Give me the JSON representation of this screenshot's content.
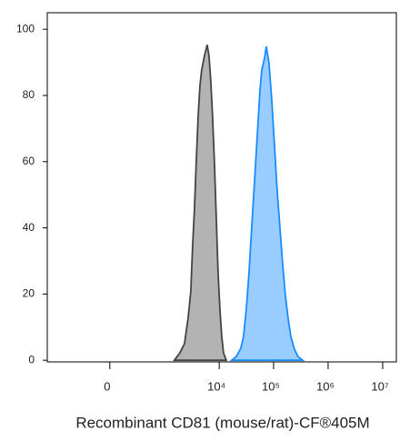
{
  "chart_data": {
    "type": "area",
    "x_label": "Recombinant CD81 (mouse/rat)-CF®405M",
    "xscale": "biexponential",
    "xlim": [
      -1300,
      17800000
    ],
    "xticks": [
      0,
      {
        "value": 10000,
        "label": "10⁴"
      },
      {
        "value": 100000,
        "label": "10⁵"
      },
      {
        "value": 1000000,
        "label": "10⁶"
      },
      {
        "value": 10000000,
        "label": "10⁷"
      }
    ],
    "ylim": [
      -0.5,
      105
    ],
    "yticks": [
      0,
      20,
      40,
      60,
      80,
      100
    ],
    "series": [
      {
        "color": "#b3b3b3",
        "edge_color": "#444444",
        "x": [
          1424,
          1819,
          2227,
          2613,
          2943,
          3186,
          3448,
          3730,
          4038,
          4367,
          4720,
          5310,
          5970,
          6460,
          6980,
          7540,
          8160,
          8810,
          9520,
          10290,
          11120,
          12010,
          13490
        ],
        "values": [
          0,
          2.2,
          5,
          12.7,
          20.9,
          34.7,
          45.7,
          59.5,
          73.3,
          82.9,
          87.6,
          92,
          95.3,
          92,
          84.3,
          73.3,
          59.5,
          43,
          26.4,
          15.4,
          7.2,
          2.2,
          0
        ]
      },
      {
        "color": "#99ccff",
        "edge_color": "#1a8cff",
        "x": [
          17000,
          20640,
          25020,
          28080,
          31520,
          35380,
          39710,
          44570,
          50020,
          56130,
          60600,
          68000,
          73500,
          82500,
          92600,
          104000,
          116600,
          130800,
          146800,
          164700,
          184800,
          207400,
          241600,
          281700,
          341400
        ],
        "values": [
          0,
          1.1,
          3.6,
          7.2,
          15.4,
          26.4,
          40.2,
          53.7,
          67.5,
          81.3,
          87.6,
          91.2,
          94.8,
          89.8,
          78.8,
          65,
          51.2,
          40.2,
          29.2,
          19.6,
          12.7,
          7.2,
          3.3,
          1.1,
          0
        ]
      }
    ]
  }
}
